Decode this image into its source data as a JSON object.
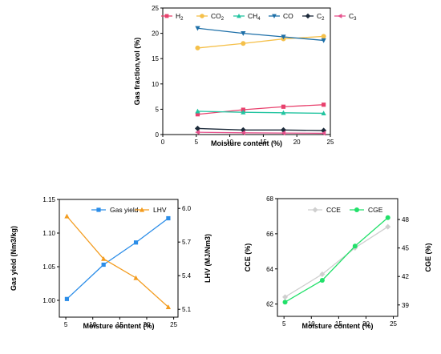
{
  "chart_data": [
    {
      "type": "line",
      "title": "",
      "xlabel": "Moisture content (%)",
      "ylabel": "Gas fraction,vol (%)",
      "xlim": [
        0,
        25
      ],
      "ylim": [
        0,
        25
      ],
      "x_ticks": [
        0,
        5,
        10,
        15,
        20,
        25
      ],
      "y_ticks": [
        0,
        5,
        10,
        15,
        20,
        25
      ],
      "x": [
        5.2,
        12,
        18,
        24
      ],
      "legend_position": "top",
      "series": [
        {
          "name": "H2",
          "name_main": "H",
          "name_sub": "2",
          "color": "#e8416d",
          "marker": "square",
          "values": [
            4.0,
            4.9,
            5.5,
            5.9
          ]
        },
        {
          "name": "CO2",
          "name_main": "CO",
          "name_sub": "2",
          "color": "#f5c04a",
          "marker": "circle",
          "values": [
            17.1,
            18.0,
            18.9,
            19.4
          ]
        },
        {
          "name": "CH4",
          "name_main": "CH",
          "name_sub": "4",
          "color": "#22c4a0",
          "marker": "triangle",
          "values": [
            4.6,
            4.4,
            4.3,
            4.2
          ]
        },
        {
          "name": "CO",
          "name_main": "CO",
          "name_sub": "",
          "color": "#1d6fa8",
          "marker": "tri-down",
          "values": [
            21.0,
            20.0,
            19.3,
            18.6
          ]
        },
        {
          "name": "C2",
          "name_main": "C",
          "name_sub": "2",
          "color": "#1c2a3a",
          "marker": "diamond",
          "values": [
            1.2,
            0.9,
            0.9,
            0.8
          ]
        },
        {
          "name": "C3",
          "name_main": "C",
          "name_sub": "3",
          "color": "#e6508c",
          "marker": "tri-left",
          "values": [
            0.45,
            0.35,
            0.3,
            0.25
          ]
        }
      ]
    },
    {
      "type": "line",
      "title": "",
      "xlabel": "Moisture content (%)",
      "ylabel": "Gas yield (Nm3/kg)",
      "y2label": "LHV (MJ/Nm3)",
      "xlim": [
        3.8,
        25.8
      ],
      "ylim": [
        0.975,
        1.15
      ],
      "y2lim": [
        5.03,
        6.08
      ],
      "x_ticks": [
        5,
        10,
        15,
        20,
        25
      ],
      "y_ticks": [
        1.0,
        1.05,
        1.1,
        1.15
      ],
      "y_tick_labels": [
        "1.00",
        "1.05",
        "1.10",
        "1.15"
      ],
      "y2_ticks": [
        5.1,
        5.4,
        5.7,
        6.0
      ],
      "y2_tick_labels": [
        "5.1",
        "5.4",
        "5.7",
        "6.0"
      ],
      "x": [
        5.2,
        12,
        18,
        24
      ],
      "legend_position": "top",
      "series": [
        {
          "name": "Gas yield",
          "axis": "left",
          "color": "#2b8de8",
          "marker": "square",
          "values": [
            1.002,
            1.053,
            1.086,
            1.122
          ]
        },
        {
          "name": "LHV",
          "axis": "right",
          "color": "#f39c1f",
          "marker": "triangle",
          "values": [
            5.93,
            5.55,
            5.38,
            5.12
          ]
        }
      ]
    },
    {
      "type": "line",
      "title": "",
      "xlabel": "Moisture content (%)",
      "ylabel": "CCE (%)",
      "y2label": "CGE (%)",
      "xlim": [
        3.8,
        25.8
      ],
      "ylim": [
        61.3,
        68
      ],
      "y2lim": [
        37.8,
        50.2
      ],
      "x_ticks": [
        5,
        10,
        15,
        20,
        25
      ],
      "y_ticks": [
        62,
        64,
        66,
        68
      ],
      "y2_ticks": [
        39,
        42,
        45,
        48
      ],
      "x": [
        5.2,
        12,
        18,
        24
      ],
      "legend_position": "top",
      "series": [
        {
          "name": "CCE",
          "axis": "left",
          "color": "#cfcfcf",
          "marker": "diamond",
          "values": [
            62.4,
            63.7,
            65.2,
            66.4
          ]
        },
        {
          "name": "CGE",
          "axis": "right",
          "color": "#22e06a",
          "marker": "circle",
          "values": [
            39.3,
            41.6,
            45.2,
            48.2
          ]
        }
      ]
    }
  ]
}
